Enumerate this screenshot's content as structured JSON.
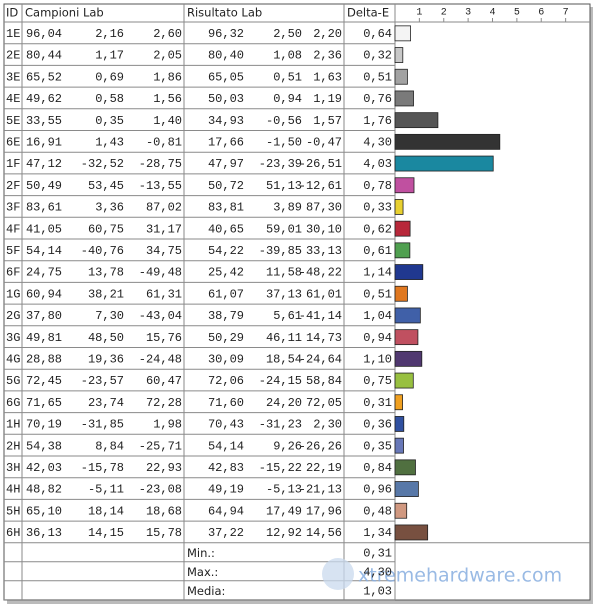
{
  "header": {
    "id": "ID",
    "campioni": "Campioni Lab",
    "risultato": "Risultato Lab",
    "delta_e": "Delta-E"
  },
  "rows": [
    {
      "id": "1E",
      "campioni": [
        "96,04",
        "2,16",
        "2,60"
      ],
      "risultato": [
        "96,32",
        "2,50",
        "2,20"
      ]
    },
    {
      "id": "2E",
      "campioni": [
        "80,44",
        "1,17",
        "2,05"
      ],
      "risultato": [
        "80,40",
        "1,08",
        "2,36"
      ]
    },
    {
      "id": "3E",
      "campioni": [
        "65,52",
        "0,69",
        "1,86"
      ],
      "risultato": [
        "65,05",
        "0,51",
        "1,63"
      ]
    },
    {
      "id": "4E",
      "campioni": [
        "49,62",
        "0,58",
        "1,56"
      ],
      "risultato": [
        "50,03",
        "0,94",
        "1,19"
      ]
    },
    {
      "id": "5E",
      "campioni": [
        "33,55",
        "0,35",
        "1,40"
      ],
      "risultato": [
        "34,93",
        "-0,56",
        "1,57"
      ]
    },
    {
      "id": "6E",
      "campioni": [
        "16,91",
        "1,43",
        "-0,81"
      ],
      "risultato": [
        "17,66",
        "-1,50",
        "-0,47"
      ]
    },
    {
      "id": "1F",
      "campioni": [
        "47,12",
        "-32,52",
        "-28,75"
      ],
      "risultato": [
        "47,97",
        "-23,39",
        "-26,51"
      ]
    },
    {
      "id": "2F",
      "campioni": [
        "50,49",
        "53,45",
        "-13,55"
      ],
      "risultato": [
        "50,72",
        "51,13",
        "-12,61"
      ]
    },
    {
      "id": "3F",
      "campioni": [
        "83,61",
        "3,36",
        "87,02"
      ],
      "risultato": [
        "83,81",
        "3,89",
        "87,30"
      ]
    },
    {
      "id": "4F",
      "campioni": [
        "41,05",
        "60,75",
        "31,17"
      ],
      "risultato": [
        "40,65",
        "59,01",
        "30,10"
      ]
    },
    {
      "id": "5F",
      "campioni": [
        "54,14",
        "-40,76",
        "34,75"
      ],
      "risultato": [
        "54,22",
        "-39,85",
        "33,13"
      ]
    },
    {
      "id": "6F",
      "campioni": [
        "24,75",
        "13,78",
        "-49,48"
      ],
      "risultato": [
        "25,42",
        "11,58",
        "-48,22"
      ]
    },
    {
      "id": "1G",
      "campioni": [
        "60,94",
        "38,21",
        "61,31"
      ],
      "risultato": [
        "61,07",
        "37,13",
        "61,01"
      ]
    },
    {
      "id": "2G",
      "campioni": [
        "37,80",
        "7,30",
        "-43,04"
      ],
      "risultato": [
        "38,79",
        "5,61",
        "-41,14"
      ]
    },
    {
      "id": "3G",
      "campioni": [
        "49,81",
        "48,50",
        "15,76"
      ],
      "risultato": [
        "50,29",
        "46,11",
        "14,73"
      ]
    },
    {
      "id": "4G",
      "campioni": [
        "28,88",
        "19,36",
        "-24,48"
      ],
      "risultato": [
        "30,09",
        "18,54",
        "-24,64"
      ]
    },
    {
      "id": "5G",
      "campioni": [
        "72,45",
        "-23,57",
        "60,47"
      ],
      "risultato": [
        "72,06",
        "-24,15",
        "58,84"
      ]
    },
    {
      "id": "6G",
      "campioni": [
        "71,65",
        "23,74",
        "72,28"
      ],
      "risultato": [
        "71,60",
        "24,20",
        "72,05"
      ]
    },
    {
      "id": "1H",
      "campioni": [
        "70,19",
        "-31,85",
        "1,98"
      ],
      "risultato": [
        "70,43",
        "-31,23",
        "2,30"
      ]
    },
    {
      "id": "2H",
      "campioni": [
        "54,38",
        "8,84",
        "-25,71"
      ],
      "risultato": [
        "54,14",
        "9,26",
        "-26,26"
      ]
    },
    {
      "id": "3H",
      "campioni": [
        "42,03",
        "-15,78",
        "22,93"
      ],
      "risultato": [
        "42,83",
        "-15,22",
        "22,19"
      ]
    },
    {
      "id": "4H",
      "campioni": [
        "48,82",
        "-5,11",
        "-23,08"
      ],
      "risultato": [
        "49,19",
        "-5,13",
        "-21,13"
      ]
    },
    {
      "id": "5H",
      "campioni": [
        "65,10",
        "18,14",
        "18,68"
      ],
      "risultato": [
        "64,94",
        "17,49",
        "17,96"
      ]
    },
    {
      "id": "6H",
      "campioni": [
        "36,13",
        "14,15",
        "15,78"
      ],
      "risultato": [
        "37,22",
        "12,92",
        "14,56"
      ]
    }
  ],
  "chart_data": {
    "type": "bar",
    "orientation": "horizontal",
    "values": [
      0.64,
      0.32,
      0.51,
      0.76,
      1.76,
      4.3,
      4.03,
      0.78,
      0.33,
      0.62,
      0.61,
      1.14,
      0.51,
      1.04,
      0.94,
      1.1,
      0.75,
      0.31,
      0.36,
      0.35,
      0.84,
      0.96,
      0.48,
      1.34
    ],
    "value_labels": [
      "0,64",
      "0,32",
      "0,51",
      "0,76",
      "1,76",
      "4,30",
      "4,03",
      "0,78",
      "0,33",
      "0,62",
      "0,61",
      "1,14",
      "0,51",
      "1,04",
      "0,94",
      "1,10",
      "0,75",
      "0,31",
      "0,36",
      "0,35",
      "0,84",
      "0,96",
      "0,48",
      "1,34"
    ],
    "colors": [
      "#f4f4f4",
      "#c8c8c8",
      "#a2a2a2",
      "#7a7a7a",
      "#555555",
      "#333333",
      "#1a88a0",
      "#c050a0",
      "#e8d030",
      "#b8283a",
      "#50a050",
      "#203890",
      "#e07820",
      "#4060a8",
      "#c05060",
      "#503870",
      "#98c040",
      "#f0a020",
      "#3050a0",
      "#6878b8",
      "#507040",
      "#5878a8",
      "#d09880",
      "#785040"
    ],
    "xlim": [
      0,
      8
    ],
    "xticks": [
      1,
      2,
      3,
      4,
      5,
      6,
      7
    ]
  },
  "summary": [
    {
      "label": "Min.:",
      "value": "0,31"
    },
    {
      "label": "Max.:",
      "value": "4,30"
    },
    {
      "label": "Media:",
      "value": "1,03"
    }
  ],
  "watermark": "xtremehardware.com"
}
